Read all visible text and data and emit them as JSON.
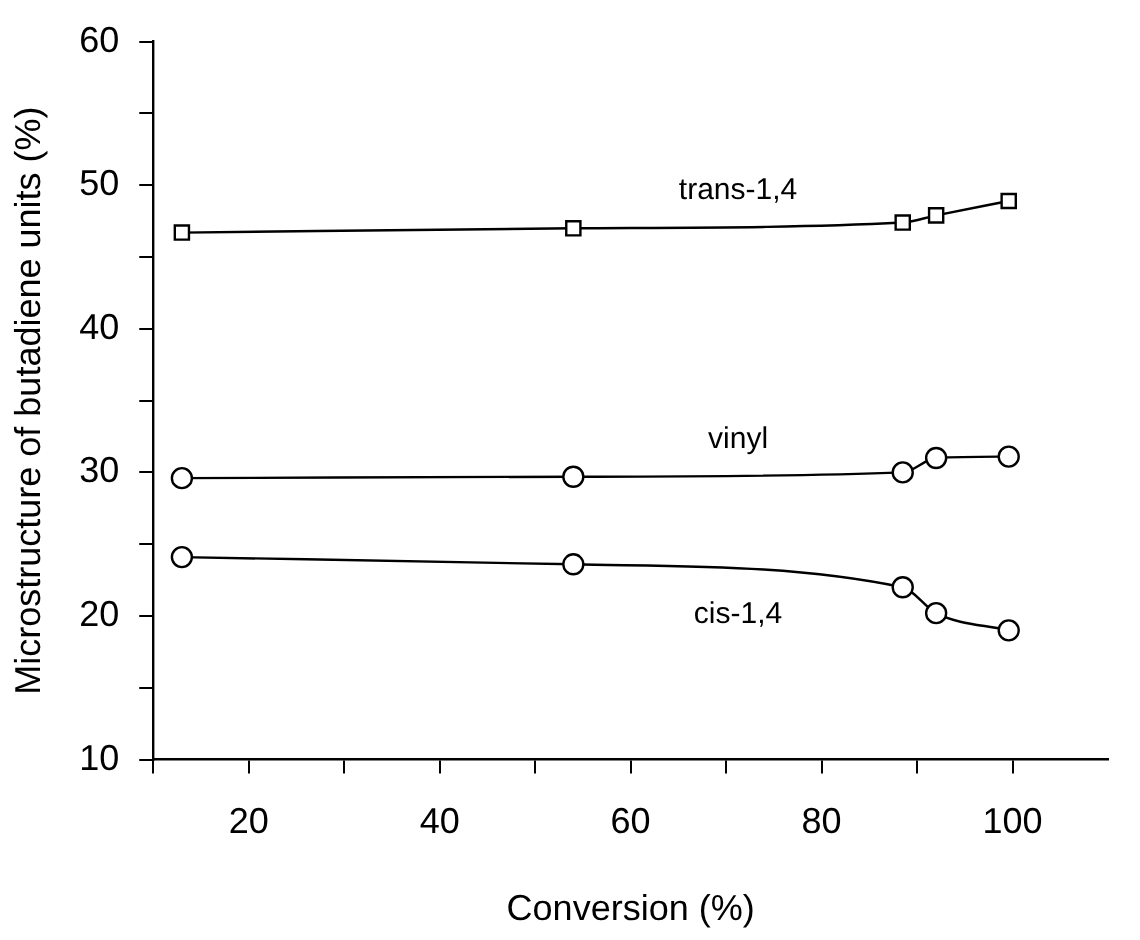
{
  "chart_data": {
    "type": "line",
    "xlabel": "Conversion (%)",
    "ylabel": "Microstructure of butadiene units (%)",
    "x": [
      13,
      54,
      88.5,
      92,
      99.6
    ],
    "series": [
      {
        "name": "trans-1,4",
        "color": "#000000",
        "marker": "square",
        "values": [
          46.7,
          47.0,
          47.4,
          47.9,
          48.9
        ]
      },
      {
        "name": "vinyl",
        "color": "#000000",
        "marker": "circle",
        "values": [
          29.6,
          29.7,
          30.0,
          31.0,
          31.1
        ]
      },
      {
        "name": "cis-1,4",
        "color": "#000000",
        "marker": "circle",
        "values": [
          24.1,
          23.6,
          22.0,
          20.2,
          19.0
        ]
      }
    ],
    "xlim": [
      10,
      110
    ],
    "xticks": [
      {
        "value": 10,
        "label": null
      },
      20,
      {
        "value": 30,
        "label": null
      },
      40,
      {
        "value": 50,
        "label": null
      },
      60,
      {
        "value": 70,
        "label": null
      },
      80,
      {
        "value": 90,
        "label": null
      },
      100
    ],
    "ylim": [
      10,
      60
    ],
    "yticks": [
      10,
      {
        "value": 15,
        "label": null
      },
      20,
      {
        "value": 25,
        "label": null
      },
      30,
      {
        "value": 35,
        "label": null
      },
      40,
      {
        "value": 45,
        "label": null
      },
      50,
      {
        "value": 55,
        "label": null
      },
      60
    ],
    "grid": false,
    "legend": false,
    "line_style": "solid"
  }
}
